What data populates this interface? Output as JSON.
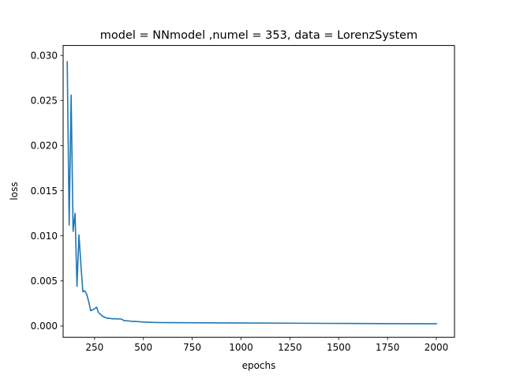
{
  "chart_data": {
    "type": "line",
    "title": "model = NNmodel ,numel = 353, data = LorenzSystem",
    "xlabel": "epochs",
    "ylabel": "loss",
    "xlim": [
      89,
      2093
    ],
    "ylim": [
      -0.00125,
      0.0311
    ],
    "xticks": [
      250,
      500,
      750,
      1000,
      1250,
      1500,
      1750,
      2000
    ],
    "xtick_labels": [
      "250",
      "500",
      "750",
      "1000",
      "1250",
      "1500",
      "1750",
      "2000"
    ],
    "yticks": [
      0.0,
      0.005,
      0.01,
      0.015,
      0.02,
      0.025,
      0.03
    ],
    "ytick_labels": [
      "0.000",
      "0.005",
      "0.010",
      "0.015",
      "0.020",
      "0.025",
      "0.030"
    ],
    "grid": false,
    "series": [
      {
        "color": "#1f77b4",
        "x": [
          110,
          120,
          130,
          140,
          150,
          160,
          170,
          180,
          190,
          200,
          210,
          220,
          230,
          240,
          250,
          260,
          270,
          280,
          290,
          300,
          310,
          320,
          330,
          340,
          350,
          360,
          370,
          380,
          390,
          400,
          420,
          440,
          460,
          480,
          500,
          550,
          600,
          700,
          800,
          1000,
          1200,
          1400,
          1600,
          1800,
          2000
        ],
        "y": [
          0.0293,
          0.0112,
          0.0256,
          0.0105,
          0.0125,
          0.0044,
          0.0101,
          0.0068,
          0.0038,
          0.0039,
          0.0035,
          0.0027,
          0.0017,
          0.0018,
          0.0019,
          0.0021,
          0.0015,
          0.0013,
          0.0011,
          0.001,
          0.0009,
          0.00085,
          0.00085,
          0.0008,
          0.00082,
          0.0008,
          0.00078,
          0.0008,
          0.00075,
          0.0006,
          0.00058,
          0.00052,
          0.0005,
          0.00048,
          0.00045,
          0.0004,
          0.00038,
          0.00037,
          0.00036,
          0.00034,
          0.00032,
          0.0003,
          0.00028,
          0.00026,
          0.00025
        ]
      }
    ]
  }
}
